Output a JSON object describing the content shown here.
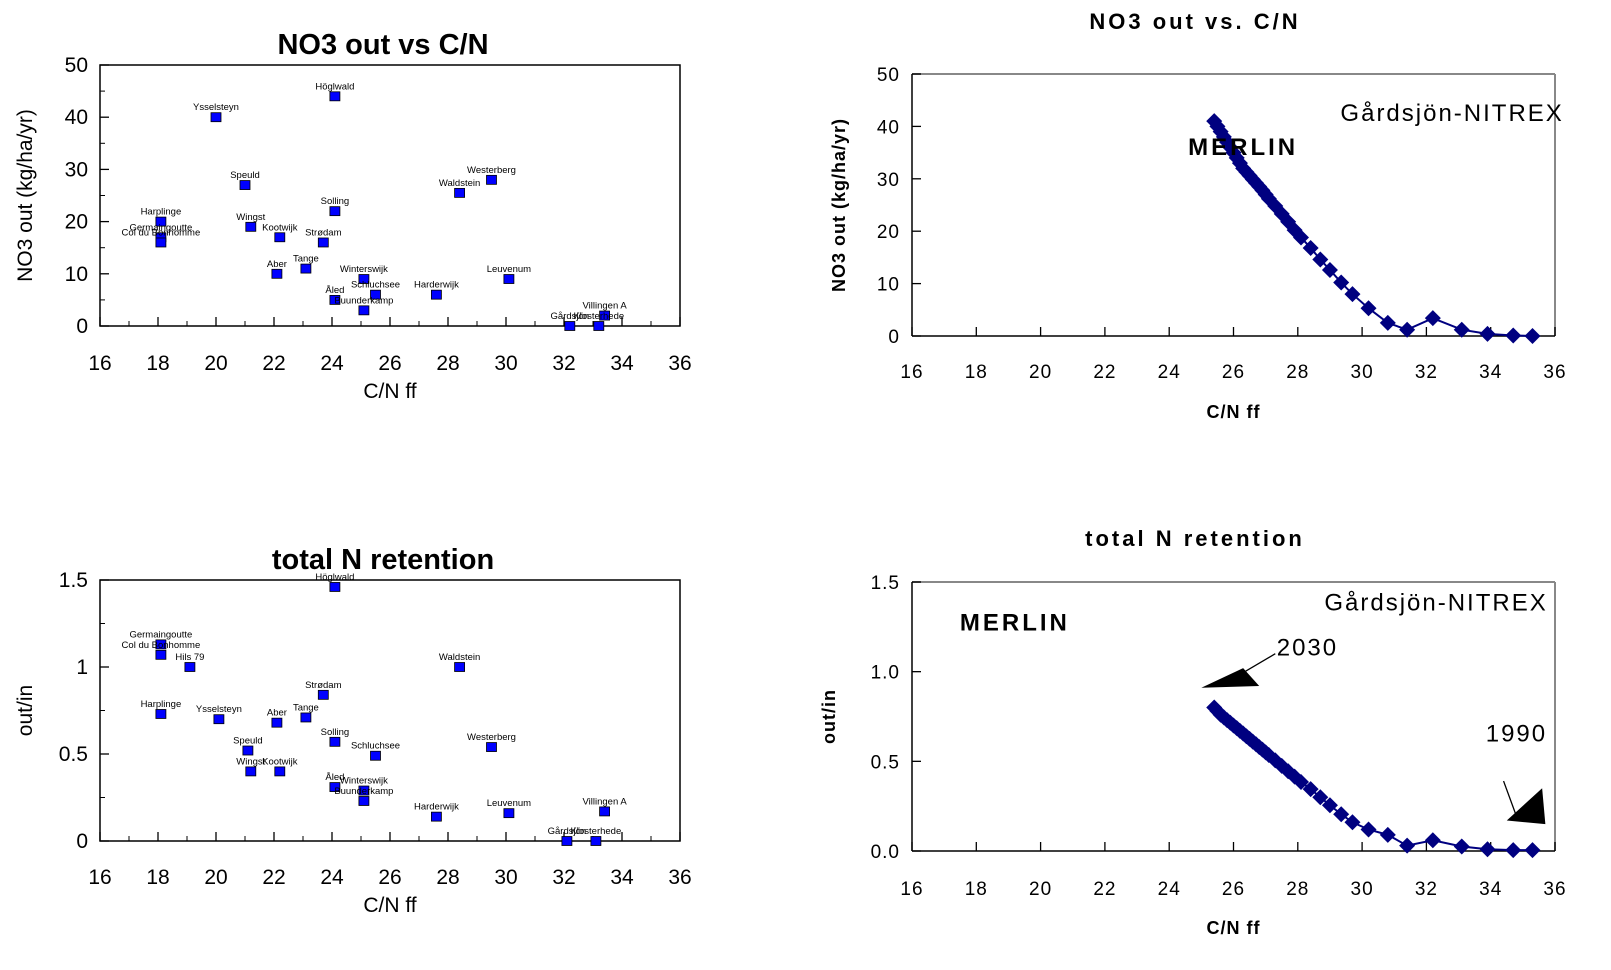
{
  "chart_data": [
    {
      "type": "scatter",
      "title": "NO3 out vs C/N",
      "xlabel": "C/N ff",
      "ylabel": "NO3 out (kg/ha/yr)",
      "xlim": [
        16,
        36
      ],
      "ylim": [
        0,
        50
      ],
      "xticks": [
        "16",
        "18",
        "20",
        "22",
        "24",
        "26",
        "28",
        "30",
        "32",
        "34",
        "36"
      ],
      "yticks": [
        "0",
        "10",
        "20",
        "30",
        "40",
        "50"
      ],
      "marker_color": "#0000ff",
      "points": [
        {
          "label": "Höglwald",
          "x": 24.1,
          "y": 44
        },
        {
          "label": "Ysselsteyn",
          "x": 20,
          "y": 40
        },
        {
          "label": "Westerberg",
          "x": 29.5,
          "y": 28
        },
        {
          "label": "Speuld",
          "x": 21,
          "y": 27
        },
        {
          "label": "Waldstein",
          "x": 28.4,
          "y": 25.5
        },
        {
          "label": "Solling",
          "x": 24.1,
          "y": 22
        },
        {
          "label": "Harplinge",
          "x": 18.1,
          "y": 20
        },
        {
          "label": "Wingst",
          "x": 21.2,
          "y": 19
        },
        {
          "label": "Germaingoutte",
          "x": 18.1,
          "y": 17
        },
        {
          "label": "Kootwijk",
          "x": 22.2,
          "y": 17
        },
        {
          "label": "Col du Bonhomme",
          "x": 18.1,
          "y": 16
        },
        {
          "label": "Strødam",
          "x": 23.7,
          "y": 16
        },
        {
          "label": "Tange",
          "x": 23.1,
          "y": 11
        },
        {
          "label": "Aber",
          "x": 22.1,
          "y": 10
        },
        {
          "label": "Winterswijk",
          "x": 25.1,
          "y": 9
        },
        {
          "label": "Leuvenum",
          "x": 30.1,
          "y": 9
        },
        {
          "label": "Schluchsee",
          "x": 25.5,
          "y": 6
        },
        {
          "label": "Harderwijk",
          "x": 27.6,
          "y": 6
        },
        {
          "label": "Åled",
          "x": 24.1,
          "y": 5
        },
        {
          "label": "Buunderkamp",
          "x": 25.1,
          "y": 3
        },
        {
          "label": "Villingen A",
          "x": 33.4,
          "y": 2
        },
        {
          "label": "Gårdsjön",
          "x": 32.2,
          "y": 0
        },
        {
          "label": "Klosterhede",
          "x": 33.2,
          "y": 0
        }
      ]
    },
    {
      "type": "line",
      "title": "NO3 out vs. C/N",
      "xlabel": "C/N ff",
      "ylabel": "NO3 out (kg/ha/yr)",
      "xlim": [
        16,
        36
      ],
      "ylim": [
        0,
        50
      ],
      "xticks": [
        "16",
        "18",
        "20",
        "22",
        "24",
        "26",
        "28",
        "30",
        "32",
        "34",
        "36"
      ],
      "yticks": [
        "0",
        "10",
        "20",
        "30",
        "40",
        "50"
      ],
      "line_color": "#000080",
      "annotations": [
        "MERLIN",
        "Gårdsjön-NITREX"
      ],
      "x": [
        25.4,
        25.5,
        25.6,
        25.7,
        25.8,
        25.9,
        26.0,
        26.1,
        26.2,
        26.3,
        26.4,
        26.5,
        26.6,
        26.7,
        26.8,
        26.9,
        27.0,
        27.1,
        27.3,
        27.5,
        27.7,
        27.9,
        28.1,
        28.4,
        28.7,
        29.0,
        29.35,
        29.7,
        30.2,
        30.8,
        31.4,
        32.2,
        33.1,
        33.9,
        34.7,
        35.3
      ],
      "y": [
        41,
        40,
        39,
        38,
        37,
        36,
        35,
        34,
        33,
        32,
        31.3,
        30.6,
        29.9,
        29.2,
        28.5,
        27.8,
        27.0,
        26.2,
        24.8,
        23.3,
        21.8,
        20.2,
        18.8,
        16.8,
        14.6,
        12.6,
        10.2,
        8.0,
        5.3,
        2.5,
        1.2,
        3.4,
        1.2,
        0.4,
        0.1,
        0
      ]
    },
    {
      "type": "scatter",
      "title": "total N retention",
      "xlabel": "C/N ff",
      "ylabel": "out/in",
      "xlim": [
        16,
        36
      ],
      "ylim": [
        0,
        1.5
      ],
      "xticks": [
        "16",
        "18",
        "20",
        "22",
        "24",
        "26",
        "28",
        "30",
        "32",
        "34",
        "36"
      ],
      "yticks": [
        "0",
        "0.5",
        "1",
        "1.5"
      ],
      "marker_color": "#0000ff",
      "points": [
        {
          "label": "Höglwald",
          "x": 24.1,
          "y": 1.46
        },
        {
          "label": "Germaingoutte",
          "x": 18.1,
          "y": 1.13
        },
        {
          "label": "Col du Bonhomme",
          "x": 18.1,
          "y": 1.07
        },
        {
          "label": "Hils 79",
          "x": 19.1,
          "y": 1.0
        },
        {
          "label": "Waldstein",
          "x": 28.4,
          "y": 1.0
        },
        {
          "label": "Strødam",
          "x": 23.7,
          "y": 0.84
        },
        {
          "label": "Harplinge",
          "x": 18.1,
          "y": 0.73
        },
        {
          "label": "Tange",
          "x": 23.1,
          "y": 0.71
        },
        {
          "label": "Ysselsteyn",
          "x": 20.1,
          "y": 0.7
        },
        {
          "label": "Aber",
          "x": 22.1,
          "y": 0.68
        },
        {
          "label": "Solling",
          "x": 24.1,
          "y": 0.57
        },
        {
          "label": "Westerberg",
          "x": 29.5,
          "y": 0.54
        },
        {
          "label": "Speuld",
          "x": 21.1,
          "y": 0.52
        },
        {
          "label": "Schluchsee",
          "x": 25.5,
          "y": 0.49
        },
        {
          "label": "Wingst",
          "x": 21.2,
          "y": 0.4
        },
        {
          "label": "Kootwijk",
          "x": 22.2,
          "y": 0.4
        },
        {
          "label": "Åled",
          "x": 24.1,
          "y": 0.31
        },
        {
          "label": "Winterswijk",
          "x": 25.1,
          "y": 0.29
        },
        {
          "label": "Buunderkamp",
          "x": 25.1,
          "y": 0.23
        },
        {
          "label": "Villingen A",
          "x": 33.4,
          "y": 0.17
        },
        {
          "label": "Leuvenum",
          "x": 30.1,
          "y": 0.16
        },
        {
          "label": "Harderwijk",
          "x": 27.6,
          "y": 0.14
        },
        {
          "label": "Gårdsjön",
          "x": 32.1,
          "y": 0.0
        },
        {
          "label": "Klosterhede",
          "x": 33.1,
          "y": 0.0
        }
      ]
    },
    {
      "type": "line",
      "title": "total N retention",
      "xlabel": "C/N ff",
      "ylabel": "out/in",
      "xlim": [
        16,
        36
      ],
      "ylim": [
        0,
        1.5
      ],
      "xticks": [
        "16",
        "18",
        "20",
        "22",
        "24",
        "26",
        "28",
        "30",
        "32",
        "34",
        "36"
      ],
      "yticks": [
        "0.0",
        "0.5",
        "1.0",
        "1.5"
      ],
      "line_color": "#000080",
      "annotations": [
        "MERLIN",
        "Gårdsjön-NITREX",
        "2030",
        "1990"
      ],
      "x": [
        25.4,
        25.5,
        25.6,
        25.7,
        25.8,
        25.9,
        26.0,
        26.1,
        26.2,
        26.3,
        26.4,
        26.5,
        26.6,
        26.7,
        26.8,
        26.9,
        27.0,
        27.1,
        27.3,
        27.5,
        27.7,
        27.9,
        28.1,
        28.4,
        28.7,
        29.0,
        29.35,
        29.7,
        30.2,
        30.8,
        31.4,
        32.2,
        33.1,
        33.9,
        34.7,
        35.3
      ],
      "y": [
        0.8,
        0.78,
        0.76,
        0.745,
        0.73,
        0.715,
        0.7,
        0.685,
        0.67,
        0.655,
        0.64,
        0.625,
        0.61,
        0.595,
        0.58,
        0.565,
        0.55,
        0.535,
        0.505,
        0.475,
        0.445,
        0.415,
        0.385,
        0.345,
        0.3,
        0.255,
        0.205,
        0.16,
        0.12,
        0.09,
        0.03,
        0.06,
        0.025,
        0.01,
        0.005,
        0.005
      ]
    }
  ]
}
